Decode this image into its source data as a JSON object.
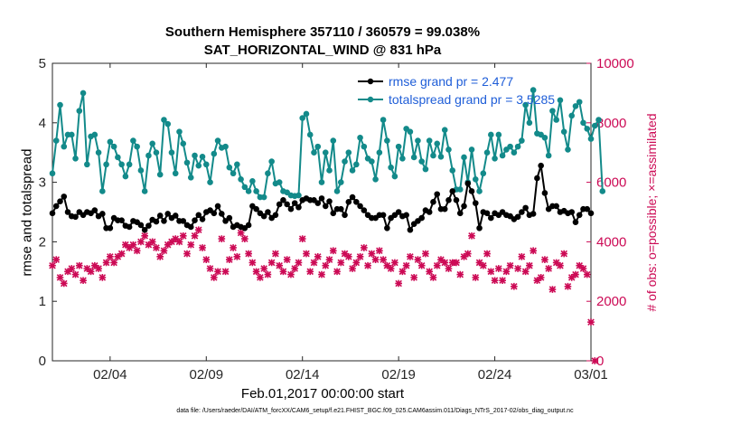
{
  "chart_data": {
    "type": "line",
    "title": "Southern Hemisphere 357110 / 360579 = 99.038%",
    "subtitle": "SAT_HORIZONTAL_WIND @ 831 hPa",
    "xlabel": "Feb.01,2017 00:00:00 start",
    "ylabel_left": "rmse and totalspread",
    "ylabel_right": "# of obs: o=possible; ×=assimilated",
    "footer": "data file: /Users/raeder/DAI/ATM_forcXX/CAM6_setup/f.e21.FHIST_BGC.f09_025.CAM6assim.011/Diags_NTrS_2017-02/obs_diag_output.nc",
    "x_tick_labels": [
      "02/04",
      "02/09",
      "02/14",
      "02/19",
      "02/24",
      "03/01"
    ],
    "x_tick_days": [
      3,
      8,
      13,
      18,
      23,
      28
    ],
    "xlim_days": [
      0,
      28
    ],
    "ylim_left": [
      0,
      5
    ],
    "yticks_left": [
      "0",
      "1",
      "2",
      "3",
      "4",
      "5"
    ],
    "ylim_right": [
      0,
      10000
    ],
    "yticks_right": [
      "0",
      "2000",
      "4000",
      "6000",
      "8000",
      "10000"
    ],
    "legend": [
      "rmse grand pr = 2.477",
      "totalspread grand pr = 3.5285"
    ],
    "legend_position": "top-right",
    "grid": false,
    "colors": {
      "rmse": "#000000",
      "totalspread": "#138a8a",
      "obs": "#cc0a55"
    },
    "series": [
      {
        "name": "rmse grand pr = 2.477",
        "axis": "left",
        "values": [
          2.48,
          2.6,
          2.68,
          2.76,
          2.5,
          2.43,
          2.42,
          2.5,
          2.45,
          2.5,
          2.48,
          2.53,
          2.43,
          2.47,
          2.23,
          2.23,
          2.4,
          2.36,
          2.36,
          2.27,
          2.25,
          2.35,
          2.33,
          2.28,
          2.2,
          2.27,
          2.37,
          2.34,
          2.44,
          2.35,
          2.47,
          2.4,
          2.44,
          2.35,
          2.35,
          2.28,
          2.25,
          2.36,
          2.45,
          2.38,
          2.5,
          2.53,
          2.48,
          2.6,
          2.47,
          2.35,
          2.4,
          2.25,
          2.28,
          2.25,
          2.23,
          2.28,
          2.6,
          2.55,
          2.48,
          2.43,
          2.5,
          2.4,
          2.45,
          2.63,
          2.7,
          2.63,
          2.55,
          2.65,
          2.58,
          2.7,
          2.73,
          2.7,
          2.7,
          2.65,
          2.73,
          2.6,
          2.68,
          2.48,
          2.55,
          2.55,
          2.45,
          2.67,
          2.75,
          2.67,
          2.6,
          2.53,
          2.45,
          2.4,
          2.4,
          2.45,
          2.45,
          2.23,
          2.4,
          2.45,
          2.5,
          2.43,
          2.45,
          2.2,
          2.3,
          2.35,
          2.4,
          2.53,
          2.5,
          2.67,
          2.8,
          2.55,
          2.55,
          2.7,
          2.85,
          2.7,
          2.48,
          2.6,
          2.98,
          2.85,
          2.65,
          2.23,
          2.5,
          2.48,
          2.4,
          2.48,
          2.45,
          2.5,
          2.45,
          2.43,
          2.38,
          2.42,
          2.5,
          2.57,
          2.45,
          2.47,
          3.07,
          3.28,
          2.82,
          2.55,
          2.6,
          2.6,
          2.5,
          2.52,
          2.48,
          2.5,
          2.33,
          2.45,
          2.55,
          2.55,
          2.48
        ]
      },
      {
        "name": "totalspread grand pr = 3.5285",
        "axis": "left",
        "values": [
          3.15,
          3.7,
          4.3,
          3.6,
          3.8,
          3.8,
          3.4,
          4.2,
          4.5,
          3.3,
          3.77,
          3.8,
          3.5,
          2.85,
          3.3,
          3.68,
          3.6,
          3.42,
          3.3,
          3.1,
          3.3,
          3.7,
          3.6,
          3.2,
          2.85,
          3.45,
          3.65,
          3.5,
          3.13,
          4.05,
          3.98,
          3.5,
          3.15,
          3.85,
          3.65,
          3.33,
          3.08,
          3.45,
          3.28,
          3.43,
          3.3,
          3.0,
          3.48,
          3.7,
          3.58,
          3.6,
          3.25,
          3.15,
          3.3,
          3.05,
          2.92,
          2.85,
          3.02,
          2.85,
          2.75,
          2.75,
          3.15,
          3.35,
          2.98,
          3.0,
          2.85,
          2.83,
          2.78,
          2.77,
          2.78,
          4.08,
          4.15,
          3.8,
          3.5,
          3.6,
          3.0,
          3.5,
          3.2,
          3.7,
          2.85,
          3.0,
          3.35,
          3.5,
          3.2,
          3.3,
          3.75,
          3.6,
          3.4,
          3.35,
          3.05,
          3.5,
          4.05,
          3.7,
          3.25,
          3.1,
          3.6,
          3.4,
          3.9,
          3.85,
          3.42,
          3.7,
          3.35,
          3.22,
          3.7,
          3.45,
          3.65,
          3.43,
          3.88,
          3.55,
          3.2,
          2.88,
          2.88,
          3.42,
          3.0,
          3.55,
          3.05,
          2.85,
          3.15,
          3.5,
          3.8,
          3.4,
          3.8,
          3.45,
          3.55,
          3.6,
          3.5,
          3.6,
          3.7,
          4.3,
          4.0,
          4.55,
          3.82,
          3.8,
          3.75,
          3.45,
          4.2,
          4.05,
          4.38,
          3.85,
          3.55,
          4.12,
          4.28,
          4.35,
          4.0,
          3.9,
          3.73,
          3.95,
          4.05,
          2.85
        ]
      },
      {
        "name": "",
        "axis": "right",
        "marker": "x",
        "values": [
          3200,
          3400,
          2800,
          2600,
          3000,
          3100,
          2900,
          3200,
          2700,
          3100,
          3000,
          3200,
          3100,
          2800,
          3300,
          3500,
          3300,
          3500,
          3600,
          3900,
          3800,
          3900,
          3700,
          4000,
          4200,
          3900,
          4000,
          3800,
          3500,
          3700,
          3900,
          4000,
          4100,
          4000,
          4200,
          3600,
          3900,
          4200,
          4400,
          3800,
          3400,
          3100,
          2800,
          3000,
          4100,
          3000,
          3400,
          3800,
          3500,
          4300,
          4100,
          3600,
          3300,
          3000,
          2800,
          3100,
          2900,
          3300,
          3600,
          3200,
          3000,
          3400,
          2900,
          3100,
          3300,
          4100,
          3600,
          3000,
          3300,
          3500,
          2900,
          3200,
          3400,
          3700,
          3000,
          3300,
          3600,
          3500,
          3100,
          3300,
          3500,
          3800,
          3200,
          3600,
          3400,
          3700,
          3400,
          3200,
          3100,
          3300,
          2600,
          3000,
          3200,
          3500,
          2800,
          3400,
          3200,
          3600,
          3000,
          2800,
          3200,
          3400,
          3300,
          3100,
          3300,
          3300,
          2900,
          3500,
          3600,
          4200,
          2800,
          3300,
          3200,
          3600,
          3000,
          2700,
          3100,
          2700,
          3000,
          3200,
          2500,
          3100,
          3500,
          3000,
          3200,
          3700,
          2700,
          2800,
          3400,
          3100,
          2400,
          3300,
          3200,
          3600,
          2500,
          2800,
          2900,
          3200,
          3100,
          2900,
          1300,
          0
        ]
      }
    ]
  }
}
